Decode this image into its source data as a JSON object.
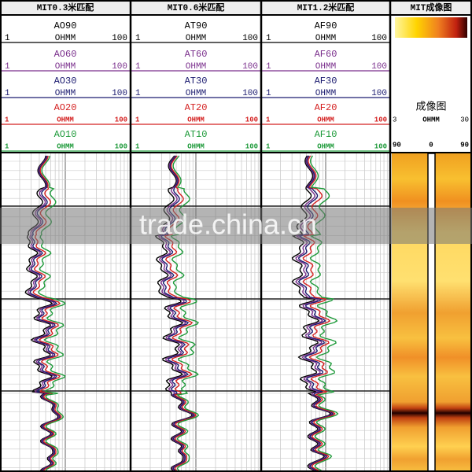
{
  "tracks": [
    {
      "title": "MIT0.3米匹配",
      "curves": [
        {
          "name": "AO90",
          "min": 1,
          "unit": "OHMM",
          "max": 100,
          "color": "#000000"
        },
        {
          "name": "AO60",
          "min": 1,
          "unit": "OHMM",
          "max": 100,
          "color": "#7a2f8c"
        },
        {
          "name": "AO30",
          "min": 1,
          "unit": "OHMM",
          "max": 100,
          "color": "#1c1c70"
        },
        {
          "name": "AO20",
          "min": 1,
          "unit": "OHMM",
          "max": 100,
          "color": "#d42020"
        },
        {
          "name": "AO10",
          "min": 1,
          "unit": "OHMM",
          "max": 100,
          "color": "#1e9a3a"
        }
      ]
    },
    {
      "title": "MIT0.6米匹配",
      "curves": [
        {
          "name": "AT90",
          "min": 1,
          "unit": "OHMM",
          "max": 100,
          "color": "#000000"
        },
        {
          "name": "AT60",
          "min": 1,
          "unit": "OHMM",
          "max": 100,
          "color": "#7a2f8c"
        },
        {
          "name": "AT30",
          "min": 1,
          "unit": "OHMM",
          "max": 100,
          "color": "#1c1c70"
        },
        {
          "name": "AT20",
          "min": 1,
          "unit": "OHMM",
          "max": 100,
          "color": "#d42020"
        },
        {
          "name": "AT10",
          "min": 1,
          "unit": "OHMM",
          "max": 100,
          "color": "#1e9a3a"
        }
      ]
    },
    {
      "title": "MIT1.2米匹配",
      "curves": [
        {
          "name": "AF90",
          "min": 1,
          "unit": "OHMM",
          "max": 100,
          "color": "#000000"
        },
        {
          "name": "AF60",
          "min": 1,
          "unit": "OHMM",
          "max": 100,
          "color": "#7a2f8c"
        },
        {
          "name": "AF30",
          "min": 1,
          "unit": "OHMM",
          "max": 100,
          "color": "#1c1c70"
        },
        {
          "name": "AF20",
          "min": 1,
          "unit": "OHMM",
          "max": 100,
          "color": "#d42020"
        },
        {
          "name": "AF10",
          "min": 1,
          "unit": "OHMM",
          "max": 100,
          "color": "#1e9a3a"
        }
      ]
    }
  ],
  "image_track": {
    "title": "MIT成像图",
    "label": "成像图",
    "scale_min": 3,
    "scale_unit": "OHMM",
    "scale_max": 30,
    "angles": [
      90,
      0,
      90
    ]
  },
  "watermark": "trade.china.cn"
}
